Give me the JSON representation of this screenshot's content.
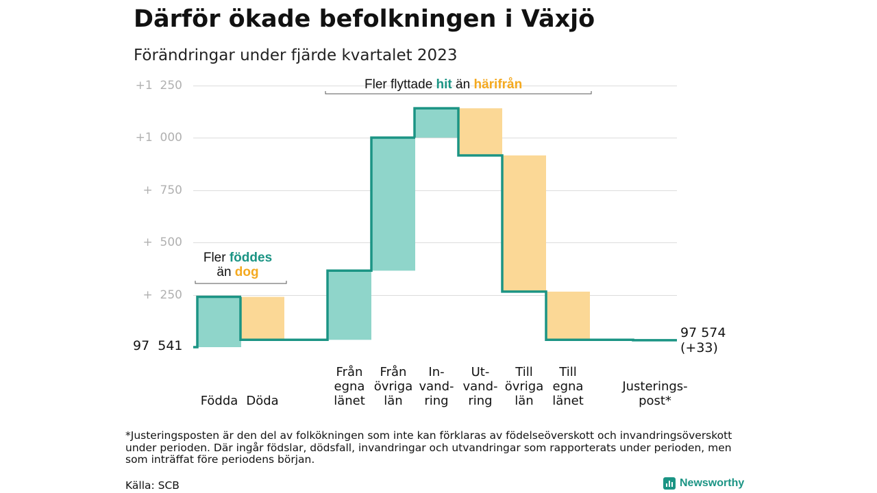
{
  "title": "Därför ökade befolkningen i Växjö",
  "subtitle": "Förändringar under fjärde kvartalet 2023",
  "colors": {
    "increase": "#8fd5ca",
    "decrease": "#fbd896",
    "line": "#1b9484",
    "teal_text": "#1b9484",
    "orange_text": "#f4a91f"
  },
  "annotations": {
    "moved": {
      "prefix": "Fler flyttade",
      "hit": "hit",
      "middle": "än",
      "harifran": "härifrån"
    },
    "born": {
      "prefix": "Fler",
      "fodde": "föddes",
      "middle": "än",
      "dog": "dog"
    }
  },
  "baseline_label": "97  541",
  "end_label": {
    "line1": "97 574",
    "line2": "(+33)"
  },
  "footnote": "*Justeringsposten är den del av folkökningen som inte kan förklaras av födelseöverskott och invandringsöverskott under perioden. Där ingår födslar, dödsfall, invandringar och utvandringar som rapporterats under perioden, men som inträffat före periodens början.",
  "source": "Källa: SCB",
  "brand": "Newsworthy",
  "chart_data": {
    "type": "bar",
    "subtype": "waterfall",
    "title": "Därför ökade befolkningen i Växjö",
    "subtitle": "Förändringar under fjärde kvartalet 2023",
    "start_value": 97541,
    "end_value": 97574,
    "net_change": 33,
    "ylim": [
      0,
      1250
    ],
    "yticks": [
      {
        "value": 250,
        "label": "+  250"
      },
      {
        "value": 500,
        "label": "+  500"
      },
      {
        "value": 750,
        "label": "+  750"
      },
      {
        "value": 1000,
        "label": "+1  000"
      },
      {
        "value": 1250,
        "label": "+1  250"
      }
    ],
    "categories": [
      {
        "lines": [
          "Födda"
        ],
        "change": 240
      },
      {
        "lines": [
          "Döda"
        ],
        "change": -205
      },
      {
        "lines": [
          "Från",
          "egna",
          "länet"
        ],
        "change": 330
      },
      {
        "lines": [
          "Från",
          "övriga",
          "län"
        ],
        "change": 635
      },
      {
        "lines": [
          "In-",
          "vand-",
          "ring"
        ],
        "change": 140
      },
      {
        "lines": [
          "Ut-",
          "vand-",
          "ring"
        ],
        "change": -225
      },
      {
        "lines": [
          "Till",
          "övriga",
          "län"
        ],
        "change": -650
      },
      {
        "lines": [
          "Till",
          "egna",
          "länet"
        ],
        "change": -230
      },
      {
        "lines": [
          "Justerings-",
          "post*"
        ],
        "change": -2
      }
    ],
    "grid": true
  }
}
